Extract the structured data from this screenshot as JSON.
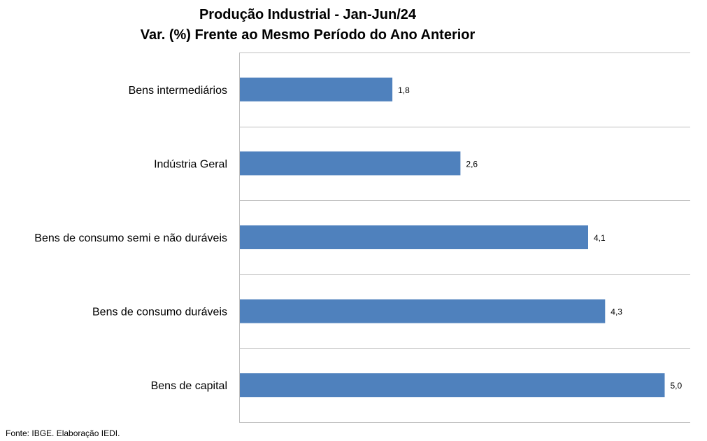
{
  "chart_data": {
    "type": "bar",
    "orientation": "horizontal",
    "title": "Produção Industrial - Jan-Jun/24",
    "subtitle": "Var. (%) Frente ao Mesmo Período do Ano Anterior",
    "categories": [
      "Bens intermediários",
      "Indústria Geral",
      "Bens de consumo semi e não duráveis",
      "Bens de consumo duráveis",
      "Bens de capital"
    ],
    "values": [
      1.8,
      2.6,
      4.1,
      4.3,
      5.0
    ],
    "value_labels": [
      "1,8",
      "2,6",
      "4,1",
      "4,3",
      "5,0"
    ],
    "xlim": [
      0,
      5.3
    ],
    "grid": true,
    "legend": "none",
    "bar_color": "#4F81BD",
    "grid_color": "#C0C0C0"
  },
  "footer": {
    "source": "Fonte: IBGE. Elaboração IEDI."
  }
}
